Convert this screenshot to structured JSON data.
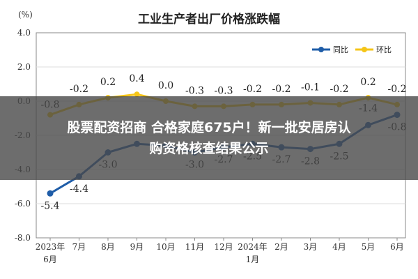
{
  "unit": "(%)",
  "colors": {
    "yoy": "#1f5da8",
    "mom": "#f5c518",
    "grid": "#dddddd",
    "axis": "#888888"
  },
  "banner": {
    "line1": "股票配资招商 合格家庭675户！新一批安居房认",
    "line2": "购资格核查结果公示"
  },
  "chart_data": {
    "type": "line",
    "title": "工业生产者出厂价格涨跌幅",
    "ylim": [
      -8.0,
      4.0
    ],
    "yticks": [
      "4.0",
      "2.0",
      "0.0",
      "-2.0",
      "-4.0",
      "-6.0",
      "-8.0"
    ],
    "categories": [
      [
        "2023年",
        "6月"
      ],
      [
        "7月"
      ],
      [
        "8月"
      ],
      [
        "9月"
      ],
      [
        "10月"
      ],
      [
        "11月"
      ],
      [
        "12月"
      ],
      [
        "2024年",
        "1月"
      ],
      [
        "2月"
      ],
      [
        "3月"
      ],
      [
        "4月"
      ],
      [
        "5月"
      ],
      [
        "6月"
      ]
    ],
    "legend_position": "top-right",
    "grid": true,
    "series": [
      {
        "name": "同比",
        "values": [
          -5.4,
          -4.4,
          -3.0,
          -2.5,
          -2.6,
          -3.0,
          -2.7,
          -2.5,
          -2.7,
          -2.8,
          -2.5,
          -1.4,
          -0.8
        ],
        "labels": [
          "-5.4",
          "-4.4",
          "-3.0",
          "",
          "",
          "-3.0",
          "-2.7",
          "-2.5",
          "-2.7",
          "-2.8",
          "-2.5",
          "-1.4",
          "-0.8"
        ]
      },
      {
        "name": "环比",
        "values": [
          -0.8,
          -0.2,
          0.2,
          0.4,
          0.0,
          -0.3,
          -0.3,
          -0.2,
          -0.2,
          -0.1,
          -0.2,
          0.2,
          -0.2
        ],
        "labels": [
          "-0.8",
          "-0.2",
          "0.2",
          "0.4",
          "0.0",
          "-0.3",
          "-0.3",
          "-0.2",
          "-0.2",
          "-0.1",
          "-0.2",
          "0.2",
          "-0.2"
        ]
      }
    ]
  }
}
